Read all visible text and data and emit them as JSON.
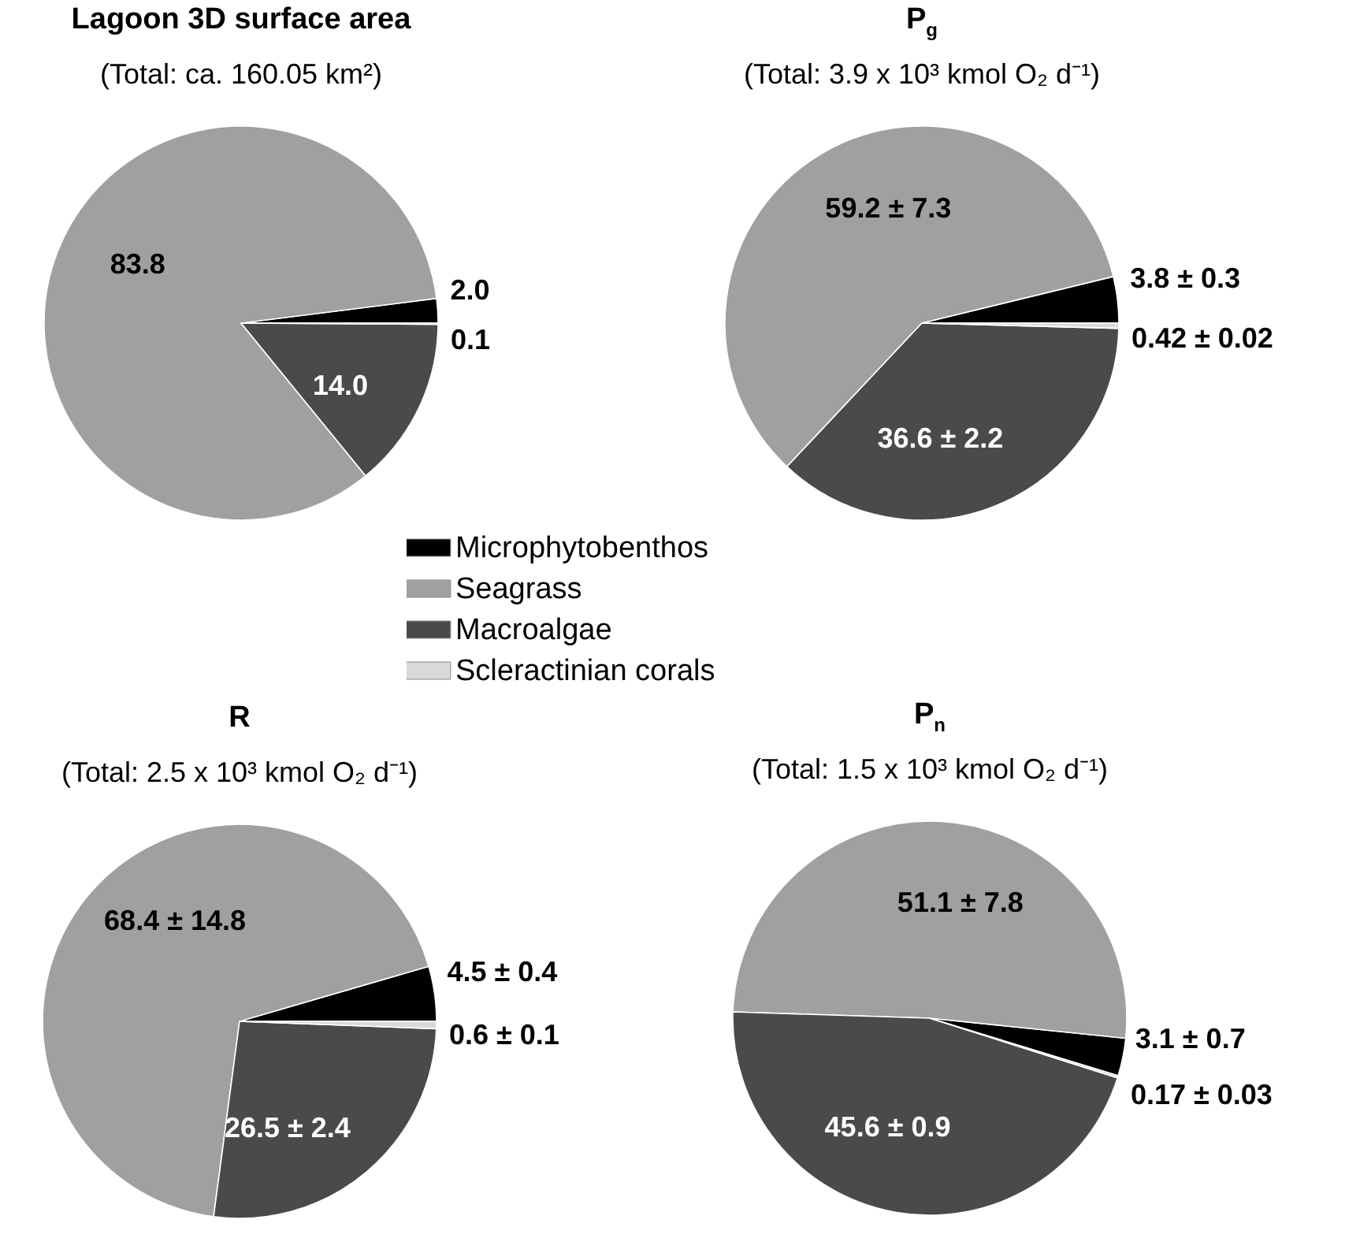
{
  "chart_data": [
    {
      "type": "pie",
      "title": "Lagoon 3D surface area",
      "subtitle": "(Total: ca. 160.05 km²)",
      "categories": [
        "Microphytobenthos",
        "Seagrass",
        "Macroalgae",
        "Scleractinian corals"
      ],
      "values": [
        2.0,
        83.8,
        14.0,
        0.1
      ],
      "colors": [
        "#000000",
        "#a0a0a0",
        "#4a4a4a",
        "#d9d9d9"
      ],
      "value_labels": [
        "2.0",
        "83.8",
        "14.0",
        "0.1"
      ],
      "legend": "bottom"
    },
    {
      "type": "pie",
      "title": "P$_{g}$",
      "subtitle": "(Total: 3.9 x 10³ kmol O₂ d⁻¹)",
      "categories": [
        null,
        null,
        null,
        null
      ],
      "values": [
        3.8,
        59.2,
        36.6,
        0.42
      ],
      "colors": [
        "#000000",
        "#a0a0a0",
        "#4a4a4a",
        "#d9d9d9"
      ],
      "value_labels": [
        "3.8 ± 0.3",
        "59.2 ± 7.3",
        "36.6 ± 2.2",
        "0.42 ± 0.02"
      ]
    },
    {
      "type": "pie",
      "title": "R",
      "subtitle": "(Total: 2.5 x 10³ kmol O₂ d⁻¹)",
      "categories": [
        null,
        null,
        null,
        null
      ],
      "values": [
        4.5,
        68.4,
        26.5,
        0.6
      ],
      "colors": [
        "#000000",
        "#a0a0a0",
        "#4a4a4a",
        "#d9d9d9"
      ],
      "value_labels": [
        "4.5 ± 0.4",
        "68.4 ± 14.8",
        "26.5 ± 2.4",
        "0.6 ± 0.1"
      ]
    },
    {
      "type": "pie",
      "title": "P$_{n}$",
      "subtitle": "(Total: 1.5 x 10³ kmol O₂ d⁻¹)",
      "categories": [
        null,
        null,
        null,
        null
      ],
      "values": [
        3.1,
        51.1,
        45.6,
        0.17
      ],
      "colors": [
        "#000000",
        "#a0a0a0",
        "#4a4a4a",
        "#d9d9d9"
      ],
      "value_labels": [
        "3.1 ± 0.7",
        "51.1 ± 7.8",
        "45.6 ± 0.9",
        "0.17 ± 0.03"
      ]
    }
  ]
}
